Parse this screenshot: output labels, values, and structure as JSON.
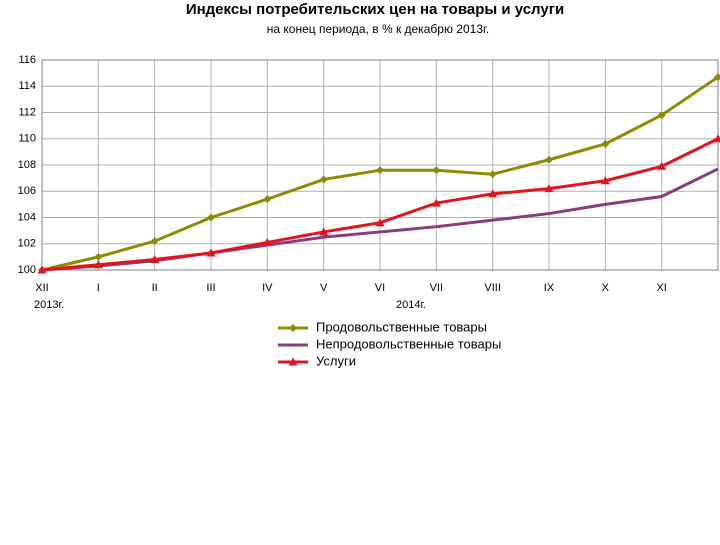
{
  "chart_data": {
    "type": "line",
    "title": "Индексы потребительских цен на товары и услуги",
    "subtitle": "на конец периода, в % к декабрю 2013г.",
    "categories": [
      "XII",
      "I",
      "II",
      "III",
      "IV",
      "V",
      "VI",
      "VII",
      "VIII",
      "IX",
      "X",
      "XI",
      null
    ],
    "annotations": [
      "2013г.",
      "2014г."
    ],
    "series": [
      {
        "name": "Продовольственные товары",
        "color": "#8c8c00",
        "marker": "diamond",
        "values": [
          100,
          101.0,
          102.2,
          104.0,
          105.4,
          106.9,
          107.6,
          107.6,
          107.3,
          108.4,
          109.6,
          111.8,
          114.7
        ]
      },
      {
        "name": "Непродовольственные товары",
        "color": "#8b3a7c",
        "marker": "none",
        "values": [
          100,
          100.3,
          100.7,
          101.3,
          101.9,
          102.5,
          102.9,
          103.3,
          103.8,
          104.3,
          105.0,
          105.6,
          107.7
        ]
      },
      {
        "name": "Услуги",
        "color": "#e0161c",
        "marker": "triangle",
        "values": [
          100,
          100.4,
          100.8,
          101.3,
          102.1,
          102.9,
          103.6,
          105.1,
          105.8,
          106.2,
          106.8,
          107.9,
          110.0
        ]
      }
    ],
    "ylim": [
      100,
      116
    ],
    "yticks": [
      100,
      102,
      104,
      106,
      108,
      110,
      112,
      114,
      116
    ],
    "grid": true
  }
}
